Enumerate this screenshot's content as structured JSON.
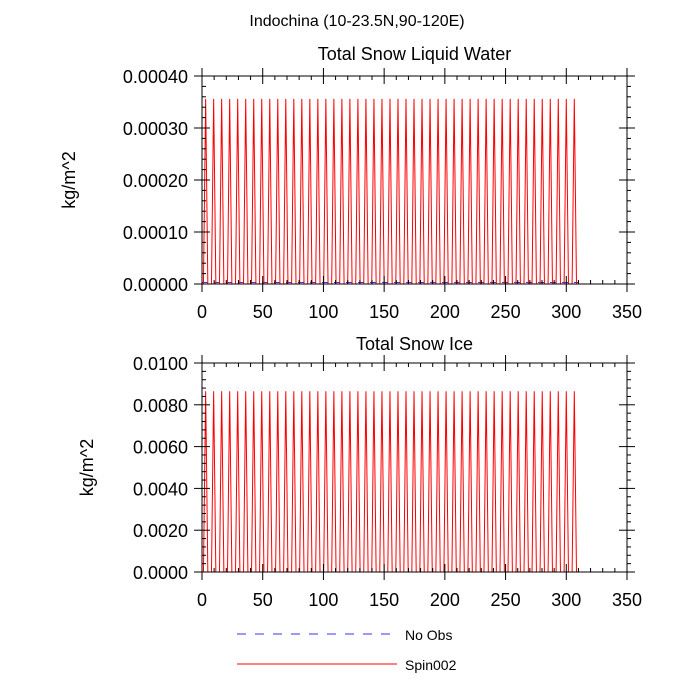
{
  "suptitle": "Indochina (10-23.5N,90-120E)",
  "colors": {
    "no_obs": "#3333ff",
    "spin002": "#ff0000",
    "axis": "#000000"
  },
  "legend": {
    "position": "bottom-center",
    "entries": [
      "No Obs",
      "Spin002"
    ]
  },
  "chart_data": [
    {
      "type": "line",
      "title": "Total Snow Liquid Water",
      "ylabel": "kg/m^2",
      "xlabel": "",
      "xlim": [
        0,
        350
      ],
      "ylim": [
        0,
        0.0004
      ],
      "xticks": [
        0,
        50,
        100,
        150,
        200,
        250,
        300,
        350
      ],
      "xtick_labels": [
        "0",
        "50",
        "100",
        "150",
        "200",
        "250",
        "300",
        "350"
      ],
      "yticks": [
        0,
        0.0001,
        0.0002,
        0.0003,
        0.0004
      ],
      "ytick_labels": [
        "0.00000",
        "0.00010",
        "0.00020",
        "0.00030",
        "0.00040"
      ],
      "grid": false,
      "series": [
        {
          "name": "No Obs",
          "style": "dashed",
          "x_range": [
            0,
            310
          ],
          "values_summary": {
            "base": 3e-06
          }
        },
        {
          "name": "Spin002",
          "style": "solid",
          "x_range": [
            0,
            310
          ],
          "values_summary": {
            "peak": 0.000356,
            "base": 0,
            "period": 6.6,
            "first_peak": 3.0,
            "last_peak": 306.6,
            "spikes": 47
          }
        }
      ]
    },
    {
      "type": "line",
      "title": "Total Snow Ice",
      "ylabel": "kg/m^2",
      "xlabel": "",
      "xlim": [
        0,
        350
      ],
      "ylim": [
        0,
        0.01
      ],
      "xticks": [
        0,
        50,
        100,
        150,
        200,
        250,
        300,
        350
      ],
      "xtick_labels": [
        "0",
        "50",
        "100",
        "150",
        "200",
        "250",
        "300",
        "350"
      ],
      "yticks": [
        0,
        0.002,
        0.004,
        0.006,
        0.008,
        0.01
      ],
      "ytick_labels": [
        "0.0000",
        "0.0020",
        "0.0040",
        "0.0060",
        "0.0080",
        "0.0100"
      ],
      "grid": false,
      "series": [
        {
          "name": "No Obs",
          "style": "dashed",
          "x_range": [
            0,
            310
          ],
          "values_summary": {
            "base": 0
          }
        },
        {
          "name": "Spin002",
          "style": "solid",
          "x_range": [
            0,
            310
          ],
          "values_summary": {
            "peak": 0.00865,
            "base": 0,
            "period": 6.6,
            "first_peak": 3.0,
            "last_peak": 306.6,
            "spikes": 47
          }
        }
      ]
    }
  ]
}
